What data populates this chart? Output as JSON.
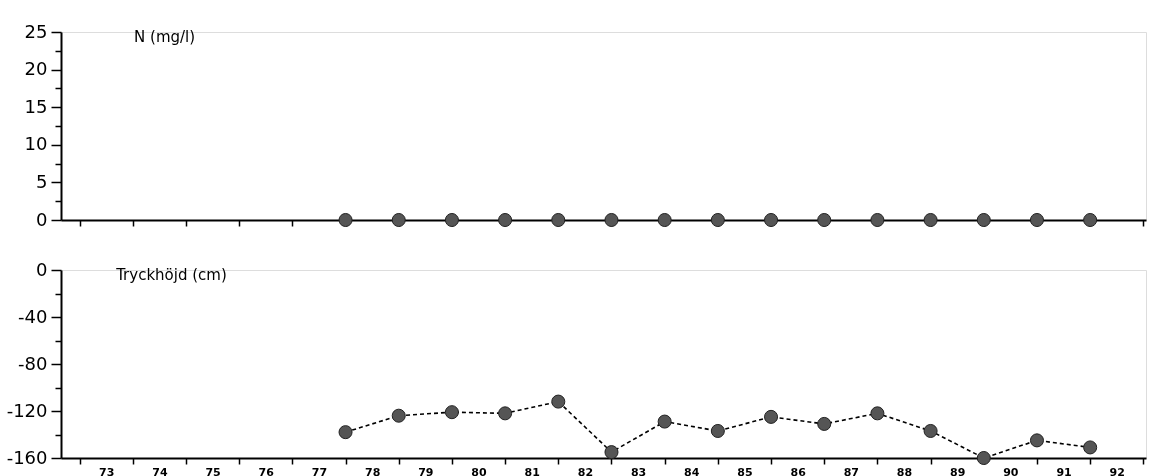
{
  "chart_data": [
    {
      "type": "scatter",
      "title": "N  (mg/l)",
      "x": [
        77.5,
        78.5,
        79.5,
        80.5,
        81.5,
        82.5,
        83.5,
        84.5,
        85.5,
        86.5,
        87.5,
        88.5,
        89.5,
        90.5,
        91.5
      ],
      "series": [
        {
          "color": "#555555",
          "values": [
            0,
            0,
            0,
            0,
            0,
            0,
            0,
            0,
            0,
            0,
            0,
            0,
            0,
            0,
            0
          ]
        }
      ],
      "marker": "circle",
      "xlim": [
        72.15,
        92.55
      ],
      "ylim": [
        0,
        25
      ],
      "xticks": [
        {
          "value": 72.5,
          "label": null
        },
        {
          "value": 73.5,
          "label": null
        },
        {
          "value": 74.5,
          "label": null
        },
        {
          "value": 75.5,
          "label": null
        },
        {
          "value": 76.5,
          "label": null
        },
        {
          "value": 77.5,
          "label": null
        },
        {
          "value": 78.5,
          "label": null
        },
        {
          "value": 79.5,
          "label": null
        },
        {
          "value": 80.5,
          "label": null
        },
        {
          "value": 81.5,
          "label": null
        },
        {
          "value": 82.5,
          "label": null
        },
        {
          "value": 83.5,
          "label": null
        },
        {
          "value": 84.5,
          "label": null
        },
        {
          "value": 85.5,
          "label": null
        },
        {
          "value": 86.5,
          "label": null
        },
        {
          "value": 87.5,
          "label": null
        },
        {
          "value": 88.5,
          "label": null
        },
        {
          "value": 89.5,
          "label": null
        },
        {
          "value": 90.5,
          "label": null
        },
        {
          "value": 91.5,
          "label": null
        },
        {
          "value": 92.5,
          "label": null
        }
      ],
      "yticks": [
        0,
        {
          "value": 2.5,
          "label": null
        },
        5,
        {
          "value": 7.5,
          "label": null
        },
        10,
        {
          "value": 12.5,
          "label": null
        },
        15,
        {
          "value": 17.5,
          "label": null
        },
        20,
        {
          "value": 22.5,
          "label": null
        },
        25
      ],
      "tick_labels": "y",
      "grid": false
    },
    {
      "type": "line",
      "title": "Tryckhöjd  (cm)",
      "x": [
        77.5,
        78.5,
        79.5,
        80.5,
        81.5,
        82.5,
        83.5,
        84.5,
        85.5,
        86.5,
        87.5,
        88.5,
        89.5,
        90.5,
        91.5
      ],
      "series": [
        {
          "color": "#555555",
          "values": [
            -138,
            -124,
            -121,
            -122,
            -112,
            -155,
            -129,
            -137,
            -125,
            -131,
            -122,
            -137,
            -160,
            -145,
            -151
          ]
        }
      ],
      "marker": "circle",
      "line_style": "dashed",
      "xlim": [
        72.15,
        92.55
      ],
      "ylim": [
        -160,
        0
      ],
      "xticks": [
        {
          "value": 72.5,
          "label": null
        },
        {
          "value": 73,
          "label": "73"
        },
        {
          "value": 73.5,
          "label": null
        },
        {
          "value": 74,
          "label": "74"
        },
        {
          "value": 74.5,
          "label": null
        },
        {
          "value": 75,
          "label": "75"
        },
        {
          "value": 75.5,
          "label": null
        },
        {
          "value": 76,
          "label": "76"
        },
        {
          "value": 76.5,
          "label": null
        },
        {
          "value": 77,
          "label": "77"
        },
        {
          "value": 77.5,
          "label": null
        },
        {
          "value": 78,
          "label": "78"
        },
        {
          "value": 78.5,
          "label": null
        },
        {
          "value": 79,
          "label": "79"
        },
        {
          "value": 79.5,
          "label": null
        },
        {
          "value": 80,
          "label": "80"
        },
        {
          "value": 80.5,
          "label": null
        },
        {
          "value": 81,
          "label": "81"
        },
        {
          "value": 81.5,
          "label": null
        },
        {
          "value": 82,
          "label": "82"
        },
        {
          "value": 82.5,
          "label": null
        },
        {
          "value": 83,
          "label": "83"
        },
        {
          "value": 83.5,
          "label": null
        },
        {
          "value": 84,
          "label": "84"
        },
        {
          "value": 84.5,
          "label": null
        },
        {
          "value": 85,
          "label": "85"
        },
        {
          "value": 85.5,
          "label": null
        },
        {
          "value": 86,
          "label": "86"
        },
        {
          "value": 86.5,
          "label": null
        },
        {
          "value": 87,
          "label": "87"
        },
        {
          "value": 87.5,
          "label": null
        },
        {
          "value": 88,
          "label": "88"
        },
        {
          "value": 88.5,
          "label": null
        },
        {
          "value": 89,
          "label": "89"
        },
        {
          "value": 89.5,
          "label": null
        },
        {
          "value": 90,
          "label": "90"
        },
        {
          "value": 90.5,
          "label": null
        },
        {
          "value": 91,
          "label": "91"
        },
        {
          "value": 91.5,
          "label": null
        },
        {
          "value": 92,
          "label": "92"
        },
        {
          "value": 92.5,
          "label": null
        }
      ],
      "yticks": [
        -160,
        {
          "value": -140,
          "label": null
        },
        -120,
        {
          "value": -100,
          "label": null
        },
        -80,
        {
          "value": -60,
          "label": null
        },
        -40,
        {
          "value": -20,
          "label": null
        },
        0
      ],
      "grid": false
    }
  ]
}
